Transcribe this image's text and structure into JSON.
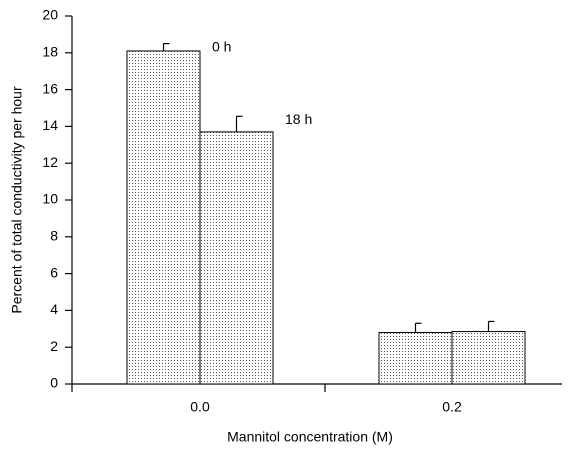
{
  "chart_data": {
    "type": "bar",
    "x_label": "Mannitol concentration (M)",
    "y_label": "Percent of total conductivity per hour",
    "categories": [
      "0.0",
      "0.2"
    ],
    "series": [
      {
        "name": "0 h",
        "color": "#555555",
        "values": [
          18.1,
          2.8
        ],
        "errors": [
          0.4,
          0.5
        ]
      },
      {
        "name": "18 h",
        "color": "#555555",
        "values": [
          13.7,
          2.85
        ],
        "errors": [
          0.85,
          0.55
        ]
      }
    ],
    "ylim": [
      0,
      20
    ],
    "yticks": [
      0,
      2,
      4,
      6,
      8,
      10,
      12,
      14,
      16,
      18,
      20
    ]
  }
}
